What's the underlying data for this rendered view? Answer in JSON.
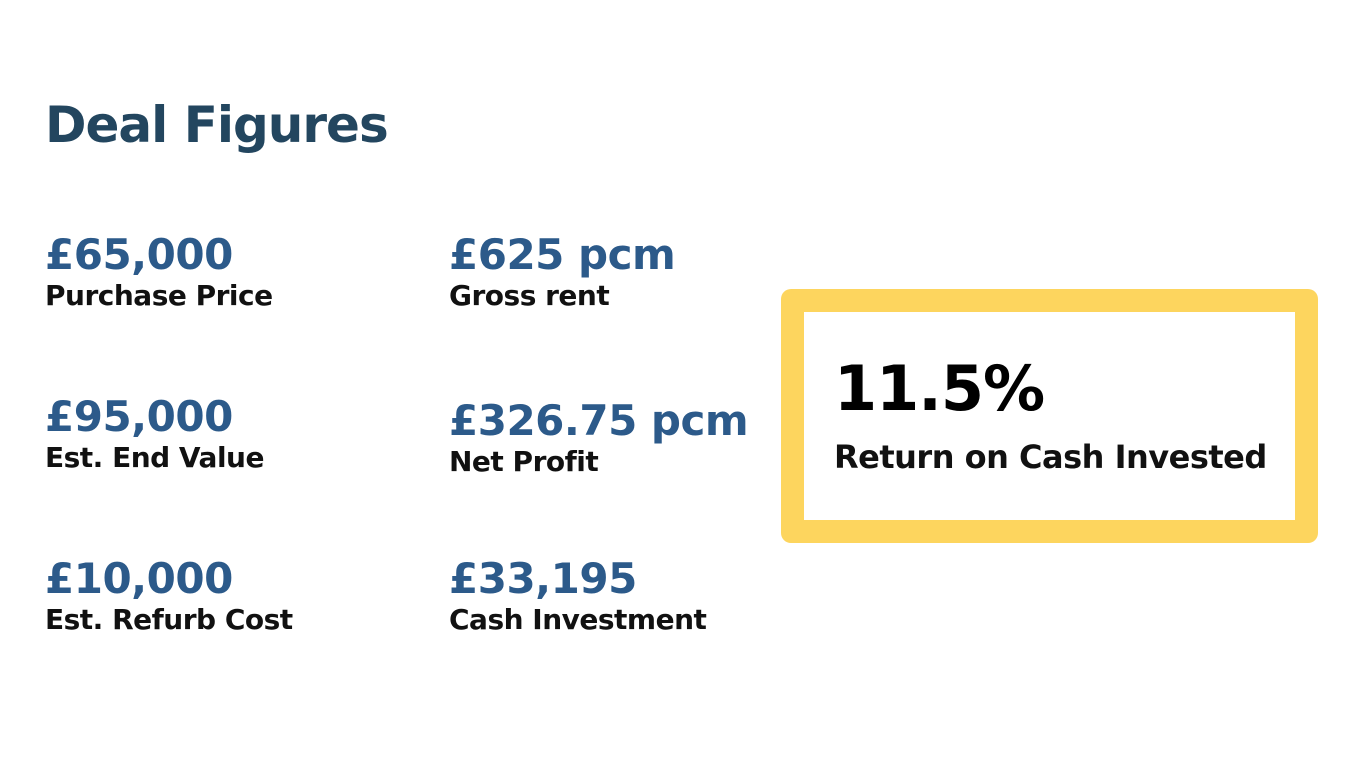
{
  "title": "Deal Figures",
  "figures": [
    {
      "value": "£65,000",
      "label": "Purchase Price"
    },
    {
      "value": "£95,000",
      "label": "Est. End Value"
    },
    {
      "value": "£10,000",
      "label": "Est. Refurb Cost"
    },
    {
      "value": "£625 pcm",
      "label": "Gross rent"
    },
    {
      "value": "£326.75 pcm",
      "label": "Net Profit"
    },
    {
      "value": "£33,195",
      "label": "Cash Investment"
    }
  ],
  "highlight": {
    "value": "11.5%",
    "label": "Return on Cash Invested"
  }
}
